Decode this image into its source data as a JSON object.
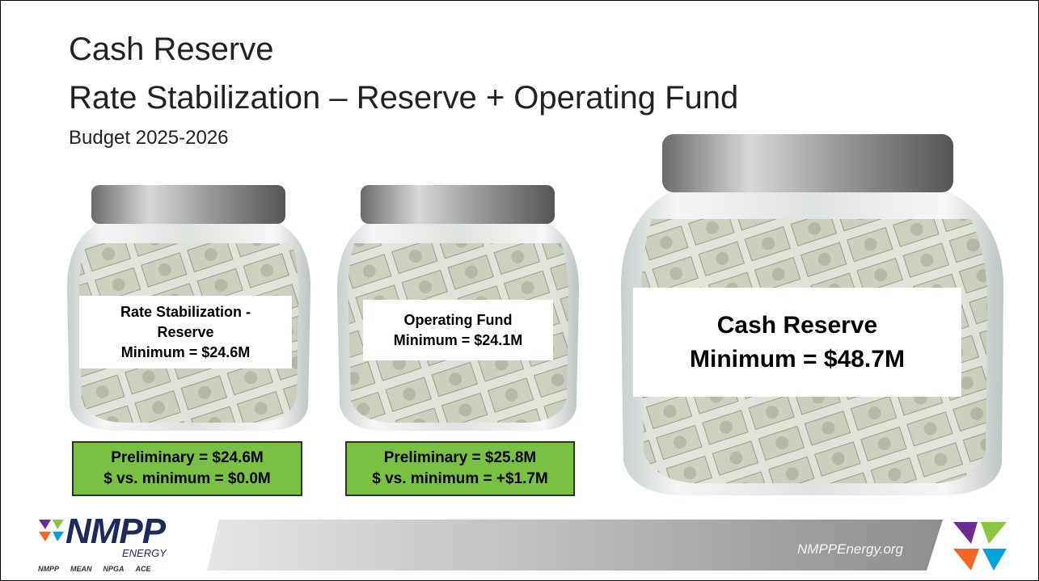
{
  "title": {
    "line1": "Cash Reserve",
    "line2": "Rate Stabilization – Reserve + Operating Fund",
    "subtitle": "Budget 2025-2026"
  },
  "jars": [
    {
      "label_lines": [
        "Rate Stabilization -",
        "Reserve",
        "Minimum = $24.6M"
      ],
      "status_lines": [
        "Preliminary = $24.6M",
        "$ vs. minimum = $0.0M"
      ]
    },
    {
      "label_lines": [
        "Operating Fund",
        "Minimum = $24.1M"
      ],
      "status_lines": [
        "Preliminary = $25.8M",
        "$ vs. minimum = +$1.7M"
      ]
    },
    {
      "label_lines": [
        "Cash Reserve",
        "Minimum = $48.7M"
      ]
    }
  ],
  "footer": {
    "logo": "NMPP",
    "logo_sub": "ENERGY",
    "affiliates": [
      "NMPP",
      "MEAN",
      "NPGA",
      "ACE"
    ],
    "url": "NMPPEnergy.org"
  }
}
